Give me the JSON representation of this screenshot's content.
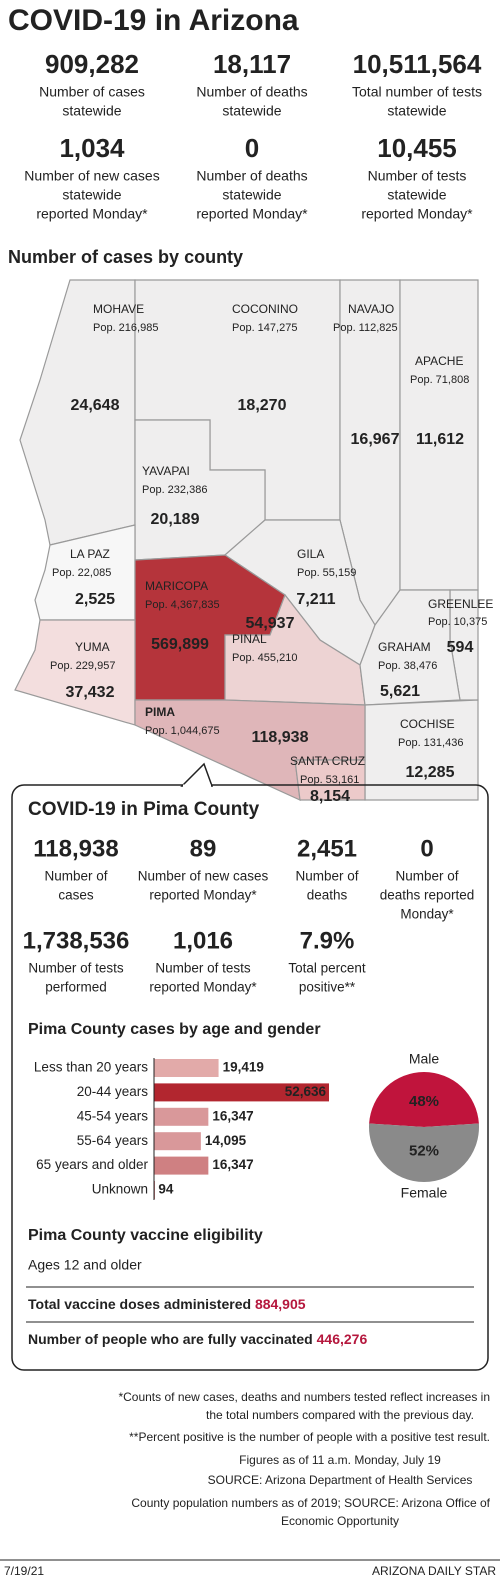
{
  "title": "COVID-19 in Arizona",
  "statewide": [
    {
      "value": "909,282",
      "label": [
        "Number of cases",
        "statewide"
      ]
    },
    {
      "value": "18,117",
      "label": [
        "Number of deaths",
        "statewide"
      ]
    },
    {
      "value": "10,511,564",
      "label": [
        "Total number of tests",
        "statewide"
      ]
    },
    {
      "value": "1,034",
      "label": [
        "Number of new cases",
        "statewide",
        "reported Monday*"
      ]
    },
    {
      "value": "0",
      "label": [
        "Number of deaths",
        "statewide",
        "reported Monday*"
      ]
    },
    {
      "value": "10,455",
      "label": [
        "Number of tests",
        "statewide",
        "reported Monday*"
      ]
    }
  ],
  "county_map": {
    "title": "Number of cases by county",
    "counties": [
      {
        "name": "MOHAVE",
        "population": "Pop. 216,985",
        "cases": "24,648"
      },
      {
        "name": "COCONINO",
        "population": "Pop. 147,275",
        "cases": "18,270"
      },
      {
        "name": "NAVAJO",
        "population": "Pop. 112,825",
        "cases": "16,967"
      },
      {
        "name": "APACHE",
        "population": "Pop. 71,808",
        "cases": "11,612"
      },
      {
        "name": "YAVAPAI",
        "population": "Pop. 232,386",
        "cases": "20,189"
      },
      {
        "name": "LA PAZ",
        "population": "Pop. 22,085",
        "cases": "2,525"
      },
      {
        "name": "GILA",
        "population": "Pop. 55,159",
        "cases": "7,211"
      },
      {
        "name": "GREENLEE",
        "population": "Pop. 10,375",
        "cases": "594"
      },
      {
        "name": "MARICOPA",
        "population": "Pop. 4,367,835",
        "cases": "569,899"
      },
      {
        "name": "PINAL",
        "population": "Pop. 455,210",
        "cases": "54,937"
      },
      {
        "name": "GRAHAM",
        "population": "Pop. 38,476",
        "cases": "5,621"
      },
      {
        "name": "YUMA",
        "population": "Pop. 229,957",
        "cases": "37,432"
      },
      {
        "name": "COCHISE",
        "population": "Pop. 131,436",
        "cases": "12,285"
      },
      {
        "name": "PIMA",
        "population": "Pop. 1,044,675",
        "cases": "118,938"
      },
      {
        "name": "SANTA CRUZ",
        "population": "Pop. 53,161",
        "cases": "8,154"
      }
    ]
  },
  "pima": {
    "title": "COVID-19 in Pima County",
    "stats": [
      {
        "value": "118,938",
        "label": [
          "Number of",
          "cases"
        ]
      },
      {
        "value": "89",
        "label": [
          "Number of new cases",
          "reported Monday*"
        ]
      },
      {
        "value": "2,451",
        "label": [
          "Number of",
          "deaths"
        ]
      },
      {
        "value": "0",
        "label": [
          "Number of",
          "deaths reported",
          "Monday*"
        ]
      },
      {
        "value": "1,738,536",
        "label": [
          "Number of tests",
          "performed"
        ]
      },
      {
        "value": "1,016",
        "label": [
          "Number of tests",
          "reported Monday*"
        ]
      },
      {
        "value": "7.9%",
        "label": [
          "Total percent",
          "positive**"
        ]
      }
    ],
    "vaccine": {
      "title": "Pima County vaccine eligibility",
      "subtitle": "Ages 12 and older",
      "rows": [
        {
          "label": "Total vaccine doses administered",
          "value": "884,905"
        },
        {
          "label": "Number of people who are fully vaccinated",
          "value": "446,276"
        }
      ]
    }
  },
  "chart_data": [
    {
      "type": "bar",
      "title": "Pima County cases by age and gender",
      "categories": [
        "Less than 20 years",
        "20-44 years",
        "45-54 years",
        "55-64 years",
        "65 years and older",
        "Unknown"
      ],
      "values": [
        19419,
        52636,
        16347,
        14095,
        16347,
        94
      ],
      "value_labels": [
        "19,419",
        "52,636",
        "16,347",
        "14,095",
        "16,347",
        "94"
      ],
      "colors": [
        "#e2aaa9",
        "#b2262f",
        "#d9989a",
        "#d9989a",
        "#cf8082",
        "#cf8082"
      ]
    },
    {
      "type": "pie",
      "categories": [
        "Male",
        "Female"
      ],
      "values": [
        48,
        52
      ],
      "value_labels": [
        "48%",
        "52%"
      ],
      "colors": [
        "#c0143c",
        "#8a8a8a"
      ]
    }
  ],
  "footnotes": [
    "*Counts of new cases, deaths and numbers tested reflect increases in",
    "the total numbers compared with the previous day.",
    "**Percent positive is the number of people with a positive test result.",
    "Figures as of 11 a.m. Monday, July 19",
    "SOURCE: Arizona Department of Health Services",
    "County population numbers as of 2019; SOURCE: Arizona Office of",
    "Economic Opportunity"
  ],
  "footer": {
    "date": "7/19/21",
    "publisher": "ARIZONA DAILY STAR"
  }
}
